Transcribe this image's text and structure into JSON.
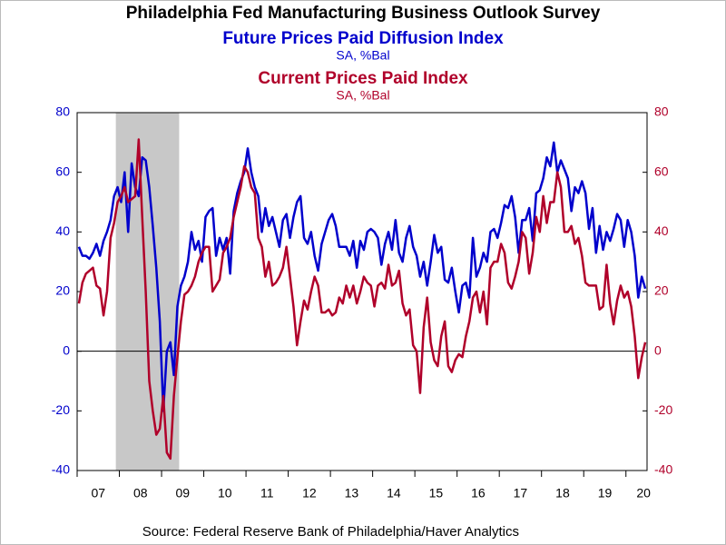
{
  "chart_data": {
    "type": "line",
    "title": "Philadelphia Fed Manufacturing Business Outlook Survey",
    "subtitles": [
      {
        "text": "Future Prices Paid Diffusion Index",
        "color": "#0000cc"
      },
      {
        "text": "SA, %Bal",
        "color": "#0000cc"
      },
      {
        "text": "Current Prices Paid Index",
        "color": "#b0002a"
      },
      {
        "text": "SA, %Bal",
        "color": "#b0002a"
      }
    ],
    "source": "Source:  Federal Reserve Bank of Philadelphia/Haver Analytics",
    "categories": [
      null,
      null,
      null,
      null,
      null,
      null,
      "07",
      null,
      null,
      null,
      null,
      null,
      null,
      null,
      null,
      null,
      null,
      null,
      "08",
      null,
      null,
      null,
      null,
      null,
      null,
      null,
      null,
      null,
      null,
      null,
      "09",
      null,
      null,
      null,
      null,
      null,
      null,
      null,
      null,
      null,
      null,
      null,
      "10",
      null,
      null,
      null,
      null,
      null,
      null,
      null,
      null,
      null,
      null,
      null,
      "11",
      null,
      null,
      null,
      null,
      null,
      null,
      null,
      null,
      null,
      null,
      null,
      "12",
      null,
      null,
      null,
      null,
      null,
      null,
      null,
      null,
      null,
      null,
      null,
      "13",
      null,
      null,
      null,
      null,
      null,
      null,
      null,
      null,
      null,
      null,
      null,
      "14",
      null,
      null,
      null,
      null,
      null,
      null,
      null,
      null,
      null,
      null,
      null,
      "15",
      null,
      null,
      null,
      null,
      null,
      null,
      null,
      null,
      null,
      null,
      null,
      "16",
      null,
      null,
      null,
      null,
      null,
      null,
      null,
      null,
      null,
      null,
      null,
      "17",
      null,
      null,
      null,
      null,
      null,
      null,
      null,
      null,
      null,
      null,
      null,
      "18",
      null,
      null,
      null,
      null,
      null,
      null,
      null,
      null,
      null,
      null,
      null,
      "19",
      null,
      null,
      null,
      null,
      null,
      null,
      null,
      null,
      null,
      null,
      "20"
    ],
    "shaded_periods": [
      {
        "start": 11,
        "end": 29
      }
    ],
    "series": [
      {
        "name": "Future Prices Paid Diffusion Index",
        "color": "#0000cc",
        "axis": "y",
        "values": [
          35,
          32,
          32,
          31,
          33,
          36,
          32,
          37,
          40,
          44,
          52,
          55,
          50,
          60,
          40,
          63,
          55,
          52,
          65,
          64,
          55,
          42,
          28,
          10,
          -20,
          0,
          3,
          -8,
          15,
          22,
          25,
          30,
          40,
          34,
          37,
          30,
          45,
          47,
          48,
          32,
          38,
          34,
          38,
          26,
          47,
          53,
          57,
          60,
          68,
          60,
          55,
          52,
          40,
          48,
          42,
          45,
          40,
          35,
          44,
          46,
          38,
          45,
          50,
          52,
          38,
          36,
          40,
          32,
          27,
          36,
          40,
          44,
          46,
          42,
          35,
          35,
          35,
          32,
          37,
          28,
          37,
          34,
          40,
          41,
          40,
          38,
          29,
          36,
          40,
          34,
          44,
          33,
          30,
          38,
          42,
          35,
          32,
          25,
          30,
          22,
          30,
          39,
          33,
          35,
          24,
          23,
          28,
          20,
          13,
          22,
          23,
          18,
          38,
          25,
          28,
          33,
          30,
          40,
          41,
          38,
          43,
          49,
          48,
          52,
          45,
          33,
          44,
          44,
          48,
          37,
          53,
          54,
          58,
          65,
          62,
          70,
          60,
          64,
          61,
          58,
          47,
          55,
          53,
          57,
          53,
          41,
          48,
          33,
          42,
          34,
          40,
          37,
          41,
          46,
          44,
          35,
          44,
          40,
          32,
          18,
          25,
          21
        ]
      },
      {
        "name": "Current Prices Paid Index",
        "color": "#b0002a",
        "axis": "y2",
        "values": [
          16,
          23,
          26,
          27,
          28,
          22,
          21,
          12,
          20,
          38,
          43,
          50,
          52,
          55,
          50,
          51,
          52,
          71,
          45,
          20,
          -10,
          -20,
          -28,
          -26,
          -15,
          -34,
          -36,
          -15,
          -2,
          10,
          19,
          20,
          22,
          25,
          30,
          33,
          35,
          35,
          20,
          22,
          24,
          33,
          35,
          38,
          45,
          50,
          55,
          62,
          60,
          55,
          53,
          38,
          35,
          25,
          30,
          22,
          23,
          25,
          28,
          35,
          25,
          15,
          2,
          10,
          17,
          14,
          20,
          25,
          22,
          13,
          13,
          14,
          12,
          13,
          18,
          16,
          22,
          18,
          22,
          16,
          20,
          25,
          23,
          22,
          15,
          22,
          23,
          21,
          29,
          22,
          23,
          27,
          16,
          12,
          14,
          2,
          0,
          -14,
          8,
          18,
          3,
          -3,
          -5,
          5,
          10,
          -5,
          -7,
          -3,
          -1,
          -2,
          5,
          10,
          18,
          20,
          13,
          20,
          9,
          28,
          30,
          30,
          36,
          33,
          23,
          21,
          25,
          30,
          40,
          38,
          26,
          33,
          45,
          40,
          52,
          43,
          50,
          50,
          60,
          55,
          40,
          40,
          42,
          36,
          38,
          32,
          23,
          22,
          22,
          22,
          14,
          15,
          29,
          16,
          9,
          17,
          22,
          18,
          20,
          15,
          5,
          -9,
          -2,
          3
        ]
      }
    ],
    "ylim": [
      -40,
      80
    ],
    "yticks": [
      -40,
      -20,
      0,
      20,
      40,
      60,
      80
    ],
    "y2lim": [
      -40,
      80
    ],
    "y2ticks": [
      -40,
      -20,
      0,
      20,
      40,
      60,
      80
    ],
    "ytick_color": "#0000cc",
    "y2tick_color": "#b0002a"
  }
}
